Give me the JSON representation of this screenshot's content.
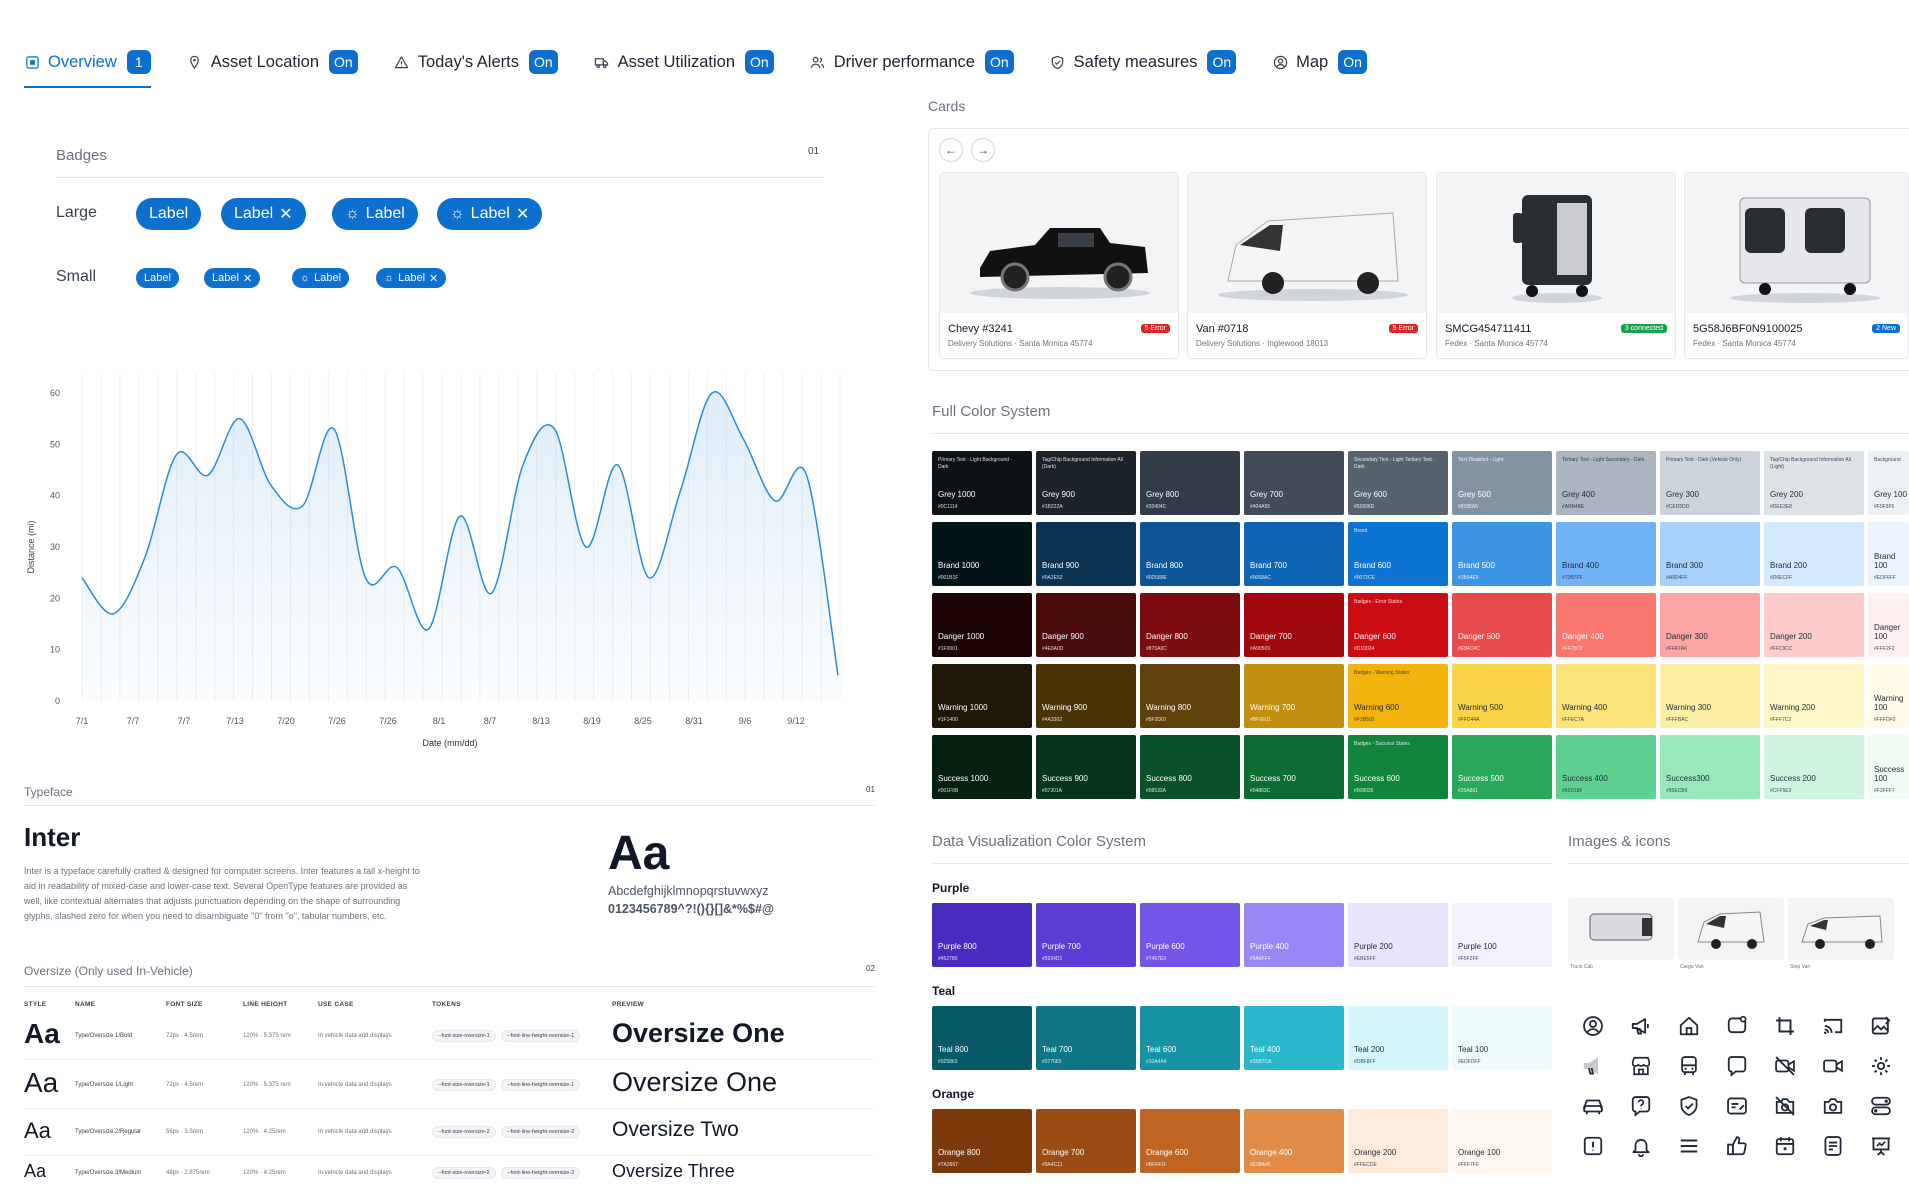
{
  "tabs": [
    {
      "label": "Overview",
      "badge": "1",
      "icon": "overview-icon",
      "active": true
    },
    {
      "label": "Asset Location",
      "badge": "On",
      "icon": "location-pin-icon"
    },
    {
      "label": "Today's Alerts",
      "badge": "On",
      "icon": "alert-triangle-icon"
    },
    {
      "label": "Asset Utilization",
      "badge": "On",
      "icon": "truck-icon"
    },
    {
      "label": "Driver performance",
      "badge": "On",
      "icon": "users-icon"
    },
    {
      "label": "Safety measures",
      "badge": "On",
      "icon": "shield-check-icon"
    },
    {
      "label": "Map",
      "badge": "On",
      "icon": "user-circle-icon"
    }
  ],
  "badges_section": {
    "title": "Badges",
    "number": "01",
    "large_label": "Large",
    "small_label": "Small",
    "pill_text": "Label"
  },
  "chart_data": {
    "type": "area",
    "ylabel": "Distance (mi)",
    "xlabel": "Date (mm/dd)",
    "ylim": [
      0,
      60
    ],
    "yticks": [
      0,
      10,
      20,
      30,
      40,
      50,
      60
    ],
    "xticks": [
      "7/1",
      "7/7",
      "7/7",
      "7/13",
      "7/20",
      "7/26",
      "7/26",
      "8/1",
      "8/7",
      "8/13",
      "8/19",
      "8/25",
      "8/31",
      "9/6",
      "9/12"
    ],
    "values": [
      24,
      17,
      28,
      48,
      44,
      55,
      42,
      38,
      53,
      24,
      26,
      14,
      36,
      21,
      46,
      53,
      30,
      46,
      24,
      41,
      60,
      51,
      39,
      44,
      5
    ],
    "grid": "vertical",
    "color": "#2b8ad8"
  },
  "typeface": {
    "section": "Typeface",
    "number": "01",
    "name": "Inter",
    "description": "Inter is a typeface carefully crafted & designed for computer screens. Inter features a tall x-height to aid in readability of mixed-case and lower-case text. Several OpenType features are provided as well, like contextual alternates that adjusts punctuation depending on the shape of surrounding glyphs, slashed zero for when you need to disambiguate \"0\" from \"o\", tabular numbers, etc.",
    "sample": "Aa",
    "lowercase": "Abcdefghijklmnopqrstuvwxyz",
    "numerals": "0123456789^?!(){}[]&*%$#@"
  },
  "oversize": {
    "section": "Oversize (Only used In-Vehicle)",
    "number": "02",
    "headers": [
      "STYLE",
      "NAME",
      "FONT SIZE",
      "LINE HEIGHT",
      "USE CASE",
      "TOKENS",
      "PREVIEW"
    ],
    "rows": [
      {
        "style": "Aa",
        "name": "Type/Oversize 1/Bold",
        "size": "72px · 4.5rem",
        "line": "120% · 5.375 rem",
        "use": "In vehicle data and displays",
        "tok1": "--font-size-oversize-1",
        "tok2": "--font-line-height-oversize-1",
        "preview": "Oversize One"
      },
      {
        "style": "Aa",
        "name": "Type/Oversize 1/Light",
        "size": "72px · 4.5rem",
        "line": "120% · 5.375 rem",
        "use": "In vehicle data and displays",
        "tok1": "--font-size-oversize-1",
        "tok2": "--font-line-height-oversize-1",
        "preview": "Oversize One"
      },
      {
        "style": "Aa",
        "name": "Type/Oversize 2/Regular",
        "size": "56px · 3.5rem",
        "line": "120% · 4.25rem",
        "use": "In vehicle data and displays",
        "tok1": "--font-size-oversize-2",
        "tok2": "--font-line-height-oversize-2",
        "preview": "Oversize Two"
      },
      {
        "style": "Aa",
        "name": "Type/Oversize 3/Medium",
        "size": "48px · 2.875rem",
        "line": "120% · 4.25rem",
        "use": "In vehicle data and displays",
        "tok1": "--font-size-oversize-2",
        "tok2": "--font-line-height-oversize-2",
        "preview": "Oversize Three"
      }
    ]
  },
  "cards": {
    "section": "Cards",
    "items": [
      {
        "title": "Chevy #3241",
        "sub": "Delivery Solutions · Santa Monica 45774",
        "badge": "5 Error",
        "badge_color": "#dc2626"
      },
      {
        "title": "Van #0718",
        "sub": "Delivery Solutions · Inglewood 18013",
        "badge": "5 Error",
        "badge_color": "#dc2626"
      },
      {
        "title": "SMCG454711411",
        "sub": "Fedex · Santa Monica 45774",
        "badge": "3 connected",
        "badge_color": "#16a34a"
      },
      {
        "title": "5G58J6BF0N9100025",
        "sub": "Fedex · Santa Monica 45774",
        "badge": "2 New",
        "badge_color": "#0d6fce"
      }
    ]
  },
  "color_system": {
    "section": "Full Color System",
    "rows": [
      {
        "names": [
          "Grey 1000",
          "Grey 900",
          "Grey 800",
          "Grey 700",
          "Grey 600",
          "Grey 500",
          "Grey 400",
          "Grey 300",
          "Grey 200",
          "Grey 100"
        ],
        "hex": [
          "#0C1114",
          "#1B222A",
          "#33404C",
          "#404A55",
          "#52606D",
          "#8395A5",
          "#ABB4BE",
          "#CED5DD",
          "#DEE3E8",
          "#F0F3F5"
        ],
        "colors": [
          "#0d1216",
          "#1c232b",
          "#323c48",
          "#424c58",
          "#56636f",
          "#8493a3",
          "#abb5c0",
          "#ccd3da",
          "#dde2e7",
          "#eef1f4"
        ],
        "desc": [
          "Primary Text - Light Background - Dark",
          "Tag/Chip Background Information All (Dark)",
          "",
          "",
          "Secondary Text - Light Tertiary Text - Dark",
          "Text Disabled - Light",
          "Tertiary Text - Light Secondary - Dark",
          "Primary Text - Dark (Vehicle Only)",
          "Tag/Chip Background Information All (Light)",
          "Background"
        ]
      },
      {
        "names": [
          "Brand 1000",
          "Brand 900",
          "Brand 800",
          "Brand 700",
          "Brand 600",
          "Brand 500",
          "Brand 400",
          "Brand 300",
          "Brand 200",
          "Brand 100"
        ],
        "hex": [
          "#001B1F",
          "#0A2E52",
          "#0D589E",
          "#0068AC",
          "#0072CE",
          "#3B94E5",
          "#73B7FF",
          "#A9D4FF",
          "#D6ECFF",
          "#EDF6FF"
        ],
        "colors": [
          "#02141a",
          "#0c3252",
          "#0e5597",
          "#0d66b3",
          "#0d73d1",
          "#3c94e5",
          "#70b3f7",
          "#a8d1fb",
          "#d3e9fd",
          "#eaf4ff"
        ],
        "desc": [
          "",
          "",
          "",
          "",
          "Brand",
          "",
          "",
          "",
          "",
          ""
        ]
      },
      {
        "names": [
          "Danger 1000",
          "Danger 900",
          "Danger 800",
          "Danger 700",
          "Danger 600",
          "Danger 500",
          "Danger 400",
          "Danger 300",
          "Danger 200",
          "Danger 100"
        ],
        "hex": [
          "#1F0001",
          "#4E0A0D",
          "#870A0C",
          "#A90509",
          "#D10024",
          "#E84C4C",
          "#FF7B72",
          "#FFA7A6",
          "#FFC9CC",
          "#FFF2F2"
        ],
        "colors": [
          "#1c0405",
          "#4a0b0d",
          "#7d0c10",
          "#a0080e",
          "#cc0c13",
          "#e84b4b",
          "#f9776f",
          "#fba6a4",
          "#fdcccb",
          "#fff1f1"
        ],
        "desc": [
          "",
          "",
          "",
          "",
          "Badges - Error States",
          "",
          "",
          "",
          "",
          ""
        ]
      },
      {
        "names": [
          "Warning 1000",
          "Warning 900",
          "Warning 800",
          "Warning 700",
          "Warning 600",
          "Warning 500",
          "Warning 400",
          "Warning 300",
          "Warning 200",
          "Warning 100"
        ],
        "hex": [
          "#1F1400",
          "#4A3302",
          "#5F3D07",
          "#BF9E01",
          "#F2B500",
          "#FFD44A",
          "#FFEC7A",
          "#FFFBAC",
          "#FFF7C2",
          "#FFFDF0"
        ],
        "colors": [
          "#1f1706",
          "#4a3305",
          "#5f410a",
          "#c08f0f",
          "#f2b30c",
          "#fbd346",
          "#fce47a",
          "#fdf0a5",
          "#fdf7c7",
          "#fffbe6"
        ],
        "desc": [
          "",
          "",
          "",
          "",
          "Badges - Warning States",
          "",
          "",
          "",
          "",
          ""
        ]
      },
      {
        "names": [
          "Success 1000",
          "Success 900",
          "Success 800",
          "Success 700",
          "Success 600",
          "Success 500",
          "Success 400",
          "Success300",
          "Success 200",
          "Success 100"
        ],
        "hex": [
          "#001F0B",
          "#07301A",
          "#08532A",
          "#04863C",
          "#008035",
          "#26A861",
          "#56D18F",
          "#95ECB6",
          "#CFF5E3",
          "#F2FFF7"
        ],
        "colors": [
          "#04200f",
          "#07341b",
          "#0a5029",
          "#0d6c32",
          "#10853b",
          "#28a85a",
          "#5ed190",
          "#97e9bb",
          "#cff5e0",
          "#eefcf4"
        ],
        "desc": [
          "",
          "",
          "",
          "",
          "Badges - Success States",
          "",
          "",
          "",
          "",
          ""
        ]
      }
    ]
  },
  "data_viz": {
    "section": "Data Visualization Color System",
    "groups": [
      {
        "label": "Purple",
        "names": [
          "Purple 800",
          "Purple 700",
          "Purple 600",
          "Purple 400",
          "Purple 200",
          "Purple 100"
        ],
        "hex": [
          "#452780",
          "#5934D1",
          "#7457E9",
          "#9A8FF4",
          "#EBE5FF",
          "#F5F2FF"
        ],
        "colors": [
          "#4a2bc0",
          "#5c3dd6",
          "#7455ea",
          "#9b86f5",
          "#e9e3fd",
          "#f4f1ff"
        ]
      },
      {
        "label": "Teal",
        "names": [
          "Teal 800",
          "Teal 700",
          "Teal 600",
          "Teal 400",
          "Teal 200",
          "Teal 100"
        ],
        "hex": [
          "#025863",
          "#077683",
          "#10A4A4",
          "#35B7CA",
          "#DBF8FF",
          "#EDFDFF"
        ],
        "colors": [
          "#085968",
          "#0d7585",
          "#1693a6",
          "#2bb7cb",
          "#d5f6fb",
          "#edfbfd"
        ]
      },
      {
        "label": "Orange",
        "names": [
          "Orange 800",
          "Orange 700",
          "Orange 600",
          "Orange 400",
          "Orange 200",
          "Orange 100"
        ],
        "hex": [
          "#7A3907",
          "#9A4C11",
          "#BF641F",
          "#E08A45",
          "#FFECDE",
          "#FFF7F0"
        ],
        "colors": [
          "#7c3a0c",
          "#9a4c14",
          "#bf6422",
          "#e08b48",
          "#ffebdc",
          "#fff6ef"
        ]
      }
    ]
  },
  "images_icons": {
    "section": "Images & icons",
    "thumb_captions": [
      "Truck Cab",
      "Cargo Van",
      "Step Van"
    ],
    "icons": [
      "user-circle-icon",
      "megaphone-icon",
      "home-icon",
      "chat-square-icon",
      "crop-icon",
      "cast-icon",
      "image-edit-icon",
      "megaphone-off-icon",
      "store-icon",
      "bus-icon",
      "chat-bubble-icon",
      "video-off-icon",
      "video-icon",
      "settings-icon",
      "car-icon",
      "help-square-icon",
      "shield-check-icon",
      "id-card-icon",
      "camera-off-icon",
      "camera-icon",
      "toggle-icon",
      "alert-square-icon",
      "bell-icon",
      "menu-icon",
      "thumbs-up-icon",
      "calendar-icon",
      "document-icon",
      "presentation-icon"
    ]
  }
}
